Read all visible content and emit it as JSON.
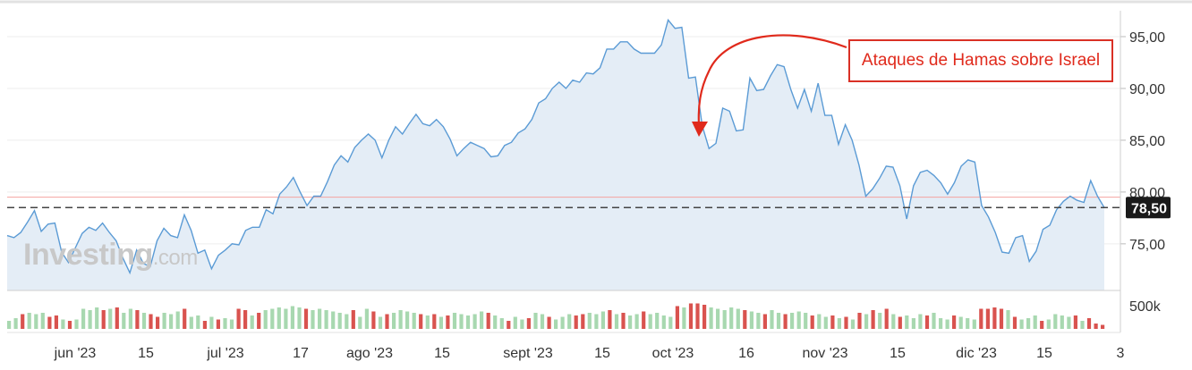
{
  "chart_data": {
    "type": "area",
    "title": "",
    "xlabel": "",
    "ylabel": "",
    "ylim": [
      70.5,
      97.5
    ],
    "yticks": [
      75,
      80,
      85,
      90,
      95
    ],
    "ytick_labels": [
      "75,00",
      "80,00",
      "85,00",
      "90,00",
      "95,00"
    ],
    "xtick_labels": [
      "jun '23",
      "15",
      "jul '23",
      "17",
      "ago '23",
      "15",
      "sept '23",
      "15",
      "oct '23",
      "16",
      "nov '23",
      "15",
      "dic '23",
      "15",
      "3"
    ],
    "volume_label": "500k",
    "current_price_label": "78,50",
    "current_price": 78.5,
    "reference_level": 79.5,
    "watermark": "Investing",
    "watermark_suffix": ".com",
    "annotation": "Ataques de Hamas sobre Israel",
    "colors": {
      "line": "#5b9bd5",
      "area": "#e4edf6",
      "volume_up": "#a8d8b0",
      "volume_down": "#d9534f",
      "annotation": "#e02a1c",
      "reference_line": "#f4a3a0",
      "price_badge": "#1a1a1a"
    },
    "series": [
      {
        "values": [
          75.8,
          75.6,
          76.1,
          77.1,
          78.2,
          76.2,
          76.9,
          77.0,
          74.2,
          73.2,
          74.6,
          76.0,
          76.6,
          76.3,
          77.0,
          76.1,
          75.3,
          73.6,
          72.2,
          74.4,
          73.1,
          72.8,
          75.3,
          76.5,
          75.8,
          75.6,
          77.8,
          76.3,
          74.1,
          74.4,
          72.6,
          73.9,
          74.4,
          75.0,
          74.9,
          76.3,
          76.6,
          76.6,
          78.3,
          77.9,
          79.8,
          80.5,
          81.4,
          80.0,
          78.7,
          79.6,
          79.6,
          81.0,
          82.6,
          83.5,
          82.9,
          84.3,
          85.0,
          85.6,
          85.0,
          83.3,
          85.0,
          86.3,
          85.6,
          86.6,
          87.5,
          86.6,
          86.4,
          87.0,
          86.3,
          85.1,
          83.5,
          84.2,
          84.8,
          84.5,
          84.2,
          83.4,
          83.5,
          84.5,
          84.8,
          85.7,
          86.1,
          87.0,
          88.6,
          89.0,
          90.0,
          90.6,
          90.0,
          90.8,
          90.6,
          91.5,
          91.4,
          92.0,
          93.8,
          93.8,
          94.5,
          94.5,
          93.8,
          93.4,
          93.4,
          93.4,
          94.2,
          96.6,
          95.8,
          95.9,
          91.0,
          91.1,
          86.4,
          84.2,
          84.7,
          88.1,
          87.8,
          85.9,
          86.0,
          91.0,
          89.8,
          89.9,
          91.2,
          92.3,
          92.1,
          89.9,
          88.1,
          89.9,
          87.8,
          90.5,
          87.4,
          87.4,
          84.6,
          86.5,
          85.0,
          82.6,
          79.6,
          80.3,
          81.3,
          82.5,
          82.4,
          80.6,
          77.4,
          80.6,
          81.9,
          82.1,
          81.6,
          80.9,
          79.8,
          80.9,
          82.5,
          83.1,
          82.9,
          78.7,
          77.6,
          76.1,
          74.2,
          74.1,
          75.6,
          75.8,
          73.3,
          74.3,
          76.4,
          76.8,
          78.3,
          79.1,
          79.6,
          79.2,
          79.0,
          81.1,
          79.6,
          78.5
        ]
      }
    ],
    "volume": [
      {
        "v": 0.3,
        "d": false
      },
      {
        "v": 0.4,
        "d": false
      },
      {
        "v": 0.55,
        "d": true
      },
      {
        "v": 0.6,
        "d": false
      },
      {
        "v": 0.55,
        "d": false
      },
      {
        "v": 0.6,
        "d": false
      },
      {
        "v": 0.45,
        "d": true
      },
      {
        "v": 0.5,
        "d": true
      },
      {
        "v": 0.35,
        "d": false
      },
      {
        "v": 0.3,
        "d": true
      },
      {
        "v": 0.35,
        "d": false
      },
      {
        "v": 0.75,
        "d": false
      },
      {
        "v": 0.7,
        "d": false
      },
      {
        "v": 0.8,
        "d": false
      },
      {
        "v": 0.7,
        "d": true
      },
      {
        "v": 0.75,
        "d": false
      },
      {
        "v": 0.8,
        "d": true
      },
      {
        "v": 0.6,
        "d": false
      },
      {
        "v": 0.75,
        "d": false
      },
      {
        "v": 0.7,
        "d": true
      },
      {
        "v": 0.6,
        "d": false
      },
      {
        "v": 0.55,
        "d": true
      },
      {
        "v": 0.45,
        "d": true
      },
      {
        "v": 0.6,
        "d": false
      },
      {
        "v": 0.55,
        "d": false
      },
      {
        "v": 0.65,
        "d": false
      },
      {
        "v": 0.75,
        "d": true
      },
      {
        "v": 0.45,
        "d": false
      },
      {
        "v": 0.5,
        "d": false
      },
      {
        "v": 0.3,
        "d": true
      },
      {
        "v": 0.45,
        "d": false
      },
      {
        "v": 0.35,
        "d": true
      },
      {
        "v": 0.4,
        "d": false
      },
      {
        "v": 0.35,
        "d": false
      },
      {
        "v": 0.75,
        "d": true
      },
      {
        "v": 0.7,
        "d": true
      },
      {
        "v": 0.5,
        "d": false
      },
      {
        "v": 0.6,
        "d": true
      },
      {
        "v": 0.7,
        "d": false
      },
      {
        "v": 0.75,
        "d": false
      },
      {
        "v": 0.8,
        "d": false
      },
      {
        "v": 0.75,
        "d": false
      },
      {
        "v": 0.85,
        "d": false
      },
      {
        "v": 0.8,
        "d": false
      },
      {
        "v": 0.75,
        "d": true
      },
      {
        "v": 0.7,
        "d": false
      },
      {
        "v": 0.75,
        "d": false
      },
      {
        "v": 0.7,
        "d": false
      },
      {
        "v": 0.65,
        "d": false
      },
      {
        "v": 0.6,
        "d": false
      },
      {
        "v": 0.55,
        "d": false
      },
      {
        "v": 0.7,
        "d": true
      },
      {
        "v": 0.45,
        "d": false
      },
      {
        "v": 0.75,
        "d": false
      },
      {
        "v": 0.65,
        "d": true
      },
      {
        "v": 0.45,
        "d": false
      },
      {
        "v": 0.55,
        "d": true
      },
      {
        "v": 0.6,
        "d": false
      },
      {
        "v": 0.7,
        "d": false
      },
      {
        "v": 0.65,
        "d": false
      },
      {
        "v": 0.6,
        "d": false
      },
      {
        "v": 0.55,
        "d": true
      },
      {
        "v": 0.5,
        "d": false
      },
      {
        "v": 0.55,
        "d": true
      },
      {
        "v": 0.45,
        "d": false
      },
      {
        "v": 0.5,
        "d": true
      },
      {
        "v": 0.6,
        "d": false
      },
      {
        "v": 0.55,
        "d": false
      },
      {
        "v": 0.5,
        "d": false
      },
      {
        "v": 0.55,
        "d": false
      },
      {
        "v": 0.65,
        "d": false
      },
      {
        "v": 0.6,
        "d": true
      },
      {
        "v": 0.5,
        "d": false
      },
      {
        "v": 0.4,
        "d": false
      },
      {
        "v": 0.3,
        "d": true
      },
      {
        "v": 0.45,
        "d": false
      },
      {
        "v": 0.35,
        "d": false
      },
      {
        "v": 0.4,
        "d": true
      },
      {
        "v": 0.6,
        "d": false
      },
      {
        "v": 0.55,
        "d": false
      },
      {
        "v": 0.45,
        "d": true
      },
      {
        "v": 0.35,
        "d": false
      },
      {
        "v": 0.45,
        "d": false
      },
      {
        "v": 0.55,
        "d": false
      },
      {
        "v": 0.5,
        "d": true
      },
      {
        "v": 0.55,
        "d": true
      },
      {
        "v": 0.6,
        "d": false
      },
      {
        "v": 0.55,
        "d": false
      },
      {
        "v": 0.65,
        "d": false
      },
      {
        "v": 0.7,
        "d": true
      },
      {
        "v": 0.55,
        "d": false
      },
      {
        "v": 0.6,
        "d": true
      },
      {
        "v": 0.5,
        "d": false
      },
      {
        "v": 0.55,
        "d": false
      },
      {
        "v": 0.65,
        "d": true
      },
      {
        "v": 0.55,
        "d": false
      },
      {
        "v": 0.6,
        "d": false
      },
      {
        "v": 0.5,
        "d": false
      },
      {
        "v": 0.45,
        "d": false
      },
      {
        "v": 0.85,
        "d": true
      },
      {
        "v": 0.8,
        "d": false
      },
      {
        "v": 0.95,
        "d": true
      },
      {
        "v": 0.95,
        "d": true
      },
      {
        "v": 0.9,
        "d": true
      },
      {
        "v": 0.8,
        "d": false
      },
      {
        "v": 0.75,
        "d": false
      },
      {
        "v": 0.7,
        "d": false
      },
      {
        "v": 0.8,
        "d": false
      },
      {
        "v": 0.75,
        "d": false
      },
      {
        "v": 0.7,
        "d": true
      },
      {
        "v": 0.65,
        "d": false
      },
      {
        "v": 0.6,
        "d": false
      },
      {
        "v": 0.55,
        "d": true
      },
      {
        "v": 0.7,
        "d": false
      },
      {
        "v": 0.6,
        "d": false
      },
      {
        "v": 0.55,
        "d": true
      },
      {
        "v": 0.6,
        "d": false
      },
      {
        "v": 0.65,
        "d": false
      },
      {
        "v": 0.6,
        "d": false
      },
      {
        "v": 0.5,
        "d": true
      },
      {
        "v": 0.55,
        "d": false
      },
      {
        "v": 0.45,
        "d": false
      },
      {
        "v": 0.5,
        "d": true
      },
      {
        "v": 0.4,
        "d": false
      },
      {
        "v": 0.45,
        "d": true
      },
      {
        "v": 0.35,
        "d": false
      },
      {
        "v": 0.6,
        "d": true
      },
      {
        "v": 0.55,
        "d": false
      },
      {
        "v": 0.7,
        "d": true
      },
      {
        "v": 0.6,
        "d": false
      },
      {
        "v": 0.75,
        "d": true
      },
      {
        "v": 0.55,
        "d": false
      },
      {
        "v": 0.45,
        "d": true
      },
      {
        "v": 0.5,
        "d": false
      },
      {
        "v": 0.4,
        "d": false
      },
      {
        "v": 0.55,
        "d": false
      },
      {
        "v": 0.5,
        "d": true
      },
      {
        "v": 0.6,
        "d": false
      },
      {
        "v": 0.4,
        "d": false
      },
      {
        "v": 0.35,
        "d": false
      },
      {
        "v": 0.5,
        "d": true
      },
      {
        "v": 0.45,
        "d": false
      },
      {
        "v": 0.4,
        "d": false
      },
      {
        "v": 0.35,
        "d": false
      },
      {
        "v": 0.75,
        "d": true
      },
      {
        "v": 0.75,
        "d": true
      },
      {
        "v": 0.8,
        "d": true
      },
      {
        "v": 0.75,
        "d": true
      },
      {
        "v": 0.7,
        "d": false
      },
      {
        "v": 0.45,
        "d": true
      },
      {
        "v": 0.35,
        "d": false
      },
      {
        "v": 0.4,
        "d": false
      },
      {
        "v": 0.5,
        "d": false
      },
      {
        "v": 0.3,
        "d": true
      },
      {
        "v": 0.35,
        "d": false
      },
      {
        "v": 0.55,
        "d": false
      },
      {
        "v": 0.5,
        "d": false
      },
      {
        "v": 0.45,
        "d": false
      },
      {
        "v": 0.5,
        "d": true
      },
      {
        "v": 0.3,
        "d": false
      },
      {
        "v": 0.4,
        "d": true
      },
      {
        "v": 0.2,
        "d": true
      },
      {
        "v": 0.15,
        "d": true
      }
    ]
  }
}
